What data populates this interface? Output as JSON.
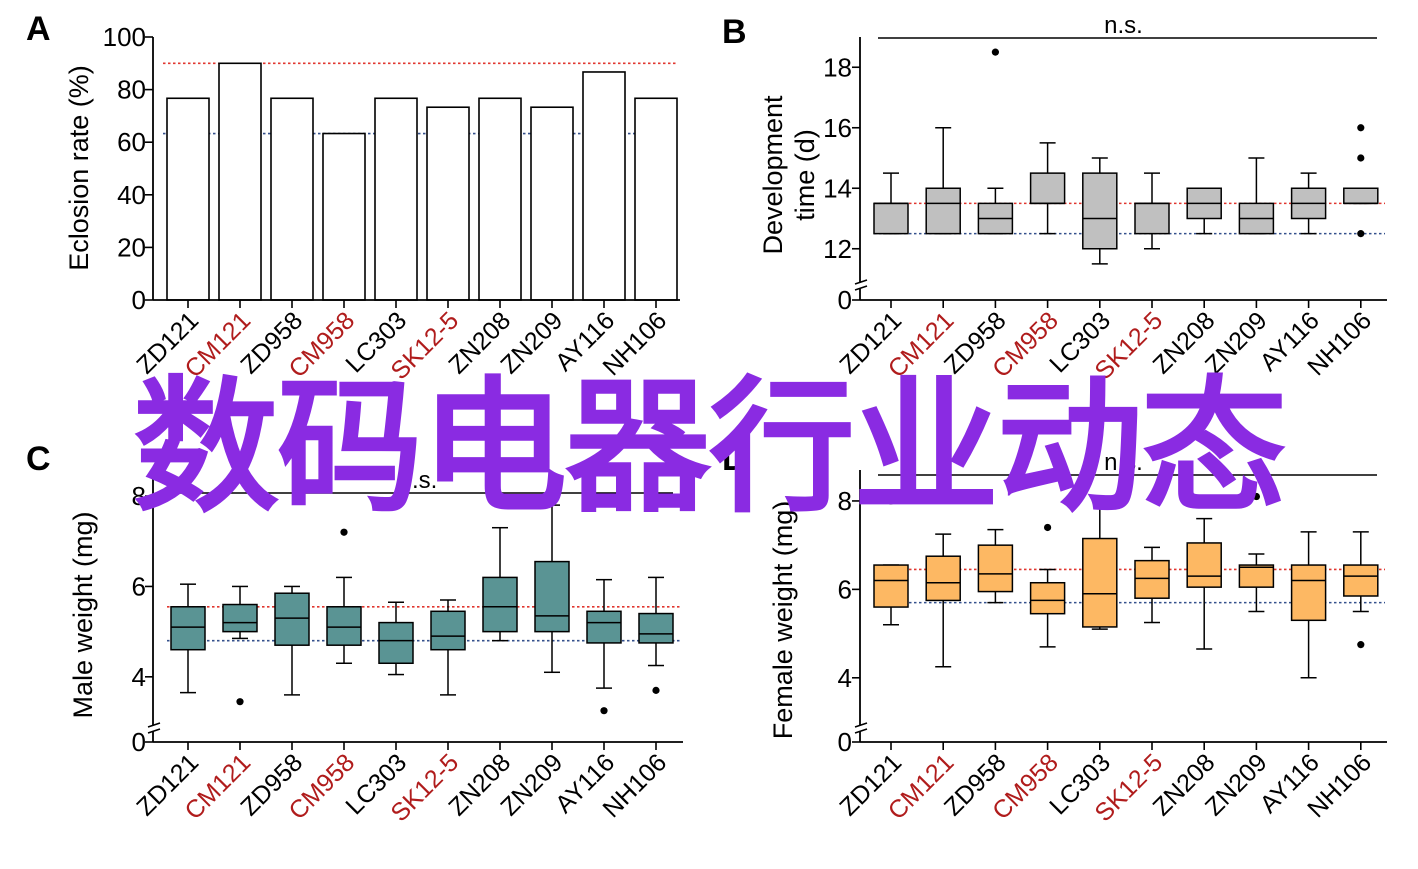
{
  "colors": {
    "red_label": "#b01c1c",
    "black_label": "#000000",
    "red_line": "#e0362f",
    "blue_line": "#34508c",
    "watermark": "#8a2be2"
  },
  "watermark": {
    "text": "数码电器行业动态"
  },
  "strains": [
    {
      "label": "ZD121",
      "color": "black"
    },
    {
      "label": "CM121",
      "color": "red"
    },
    {
      "label": "ZD958",
      "color": "black"
    },
    {
      "label": "CM958",
      "color": "red"
    },
    {
      "label": "LC303",
      "color": "black"
    },
    {
      "label": "SK12-5",
      "color": "red"
    },
    {
      "label": "ZN208",
      "color": "black"
    },
    {
      "label": "ZN209",
      "color": "black"
    },
    {
      "label": "AY116",
      "color": "black"
    },
    {
      "label": "NH106",
      "color": "black"
    }
  ],
  "chart_data": [
    {
      "panel": "A",
      "type": "bar",
      "ylabel": "Eclosion rate (%)",
      "ylim": [
        0,
        100
      ],
      "yticks": [
        0,
        20,
        40,
        60,
        80,
        100
      ],
      "categories": [
        "ZD121",
        "CM121",
        "ZD958",
        "CM958",
        "LC303",
        "SK12-5",
        "ZN208",
        "ZN209",
        "AY116",
        "NH106"
      ],
      "values": [
        76.7,
        90,
        76.7,
        63.3,
        76.7,
        73.3,
        76.7,
        73.3,
        86.7,
        76.7
      ],
      "ref_lines": [
        {
          "color": "red",
          "value": 90
        },
        {
          "color": "blue",
          "value": 63.3
        }
      ],
      "bar_color": "#ffffff"
    },
    {
      "panel": "B",
      "type": "box",
      "ylabel_lines": [
        "Development",
        "time (d)"
      ],
      "ylim": [
        11,
        19
      ],
      "yticks": [
        12,
        14,
        16,
        18
      ],
      "zero_tick": "0",
      "axis_break": true,
      "annotation": "n.s.",
      "box_color": "#c0c0c0",
      "categories": [
        "ZD121",
        "CM121",
        "ZD958",
        "CM958",
        "LC303",
        "SK12-5",
        "ZN208",
        "ZN209",
        "AY116",
        "NH106"
      ],
      "boxes": [
        {
          "min": 12.5,
          "q1": 12.5,
          "median": 13.5,
          "q3": 13.5,
          "max": 14.5,
          "outliers": []
        },
        {
          "min": 12.5,
          "q1": 12.5,
          "median": 13.5,
          "q3": 14.0,
          "max": 16.0,
          "outliers": []
        },
        {
          "min": 12.5,
          "q1": 12.5,
          "median": 13.0,
          "q3": 13.5,
          "max": 14.0,
          "outliers": [
            18.5
          ]
        },
        {
          "min": 12.5,
          "q1": 13.5,
          "median": 13.5,
          "q3": 14.5,
          "max": 15.5,
          "outliers": []
        },
        {
          "min": 11.5,
          "q1": 12.0,
          "median": 13.0,
          "q3": 14.5,
          "max": 15.0,
          "outliers": []
        },
        {
          "min": 12.0,
          "q1": 12.5,
          "median": 13.5,
          "q3": 13.5,
          "max": 14.5,
          "outliers": []
        },
        {
          "min": 12.5,
          "q1": 13.0,
          "median": 13.5,
          "q3": 14.0,
          "max": 14.0,
          "outliers": []
        },
        {
          "min": 12.5,
          "q1": 12.5,
          "median": 13.0,
          "q3": 13.5,
          "max": 15.0,
          "outliers": []
        },
        {
          "min": 12.5,
          "q1": 13.0,
          "median": 13.5,
          "q3": 14.0,
          "max": 14.5,
          "outliers": []
        },
        {
          "min": 13.5,
          "q1": 13.5,
          "median": 13.5,
          "q3": 14.0,
          "max": 14.0,
          "outliers": [
            16.0,
            15.0,
            12.5
          ]
        }
      ],
      "ref_lines": [
        {
          "color": "red",
          "value": 13.5
        },
        {
          "color": "blue",
          "value": 12.5
        }
      ]
    },
    {
      "panel": "C",
      "type": "box",
      "ylabel": "Male weight (mg)",
      "ylim": [
        3.0,
        8.4
      ],
      "yticks": [
        4,
        6,
        8
      ],
      "zero_tick": "0",
      "axis_break": true,
      "annotation": "n.s.",
      "box_color": "#5a9494",
      "categories": [
        "ZD121",
        "CM121",
        "ZD958",
        "CM958",
        "LC303",
        "SK12-5",
        "ZN208",
        "ZN209",
        "AY116",
        "NH106"
      ],
      "boxes": [
        {
          "min": 3.65,
          "q1": 4.6,
          "median": 5.1,
          "q3": 5.55,
          "max": 6.05,
          "outliers": []
        },
        {
          "min": 4.85,
          "q1": 5.0,
          "median": 5.2,
          "q3": 5.6,
          "max": 6.0,
          "outliers": [
            3.45
          ]
        },
        {
          "min": 3.6,
          "q1": 4.7,
          "median": 5.3,
          "q3": 5.85,
          "max": 6.0,
          "outliers": []
        },
        {
          "min": 4.3,
          "q1": 4.7,
          "median": 5.1,
          "q3": 5.55,
          "max": 6.2,
          "outliers": [
            7.2
          ]
        },
        {
          "min": 4.05,
          "q1": 4.3,
          "median": 4.8,
          "q3": 5.2,
          "max": 5.65,
          "outliers": []
        },
        {
          "min": 3.6,
          "q1": 4.6,
          "median": 4.9,
          "q3": 5.45,
          "max": 5.7,
          "outliers": []
        },
        {
          "min": 4.8,
          "q1": 5.0,
          "median": 5.55,
          "q3": 6.2,
          "max": 7.3,
          "outliers": []
        },
        {
          "min": 4.1,
          "q1": 5.0,
          "median": 5.35,
          "q3": 6.55,
          "max": 7.8,
          "outliers": []
        },
        {
          "min": 3.75,
          "q1": 4.75,
          "median": 5.2,
          "q3": 5.45,
          "max": 6.15,
          "outliers": [
            3.25
          ]
        },
        {
          "min": 4.25,
          "q1": 4.75,
          "median": 4.95,
          "q3": 5.4,
          "max": 6.2,
          "outliers": [
            3.7
          ]
        }
      ],
      "ref_lines": [
        {
          "color": "red",
          "value": 5.55
        },
        {
          "color": "blue",
          "value": 4.8
        }
      ]
    },
    {
      "panel": "D",
      "type": "box",
      "ylabel": "Female weight (mg)",
      "ylim": [
        3.0,
        8.7
      ],
      "yticks": [
        4,
        6,
        8
      ],
      "zero_tick": "0",
      "axis_break": true,
      "annotation": "n.s.",
      "box_color": "#fdb863",
      "categories": [
        "ZD121",
        "CM121",
        "ZD958",
        "CM958",
        "LC303",
        "SK12-5",
        "ZN208",
        "ZN209",
        "AY116",
        "NH106"
      ],
      "boxes": [
        {
          "min": 5.2,
          "q1": 5.6,
          "median": 6.2,
          "q3": 6.55,
          "max": 6.55,
          "outliers": [
            8.0
          ]
        },
        {
          "min": 4.25,
          "q1": 5.75,
          "median": 6.15,
          "q3": 6.75,
          "max": 7.25,
          "outliers": []
        },
        {
          "min": 5.7,
          "q1": 5.95,
          "median": 6.35,
          "q3": 7.0,
          "max": 7.35,
          "outliers": []
        },
        {
          "min": 4.7,
          "q1": 5.45,
          "median": 5.75,
          "q3": 6.15,
          "max": 6.45,
          "outliers": [
            7.4
          ]
        },
        {
          "min": 5.1,
          "q1": 5.15,
          "median": 5.9,
          "q3": 7.15,
          "max": 8.1,
          "outliers": []
        },
        {
          "min": 5.25,
          "q1": 5.8,
          "median": 6.25,
          "q3": 6.65,
          "max": 6.95,
          "outliers": []
        },
        {
          "min": 4.65,
          "q1": 6.05,
          "median": 6.3,
          "q3": 7.05,
          "max": 7.6,
          "outliers": []
        },
        {
          "min": 5.5,
          "q1": 6.05,
          "median": 6.5,
          "q3": 6.55,
          "max": 6.8,
          "outliers": [
            8.1
          ]
        },
        {
          "min": 4.0,
          "q1": 5.3,
          "median": 6.2,
          "q3": 6.55,
          "max": 7.3,
          "outliers": []
        },
        {
          "min": 5.5,
          "q1": 5.85,
          "median": 6.3,
          "q3": 6.55,
          "max": 7.3,
          "outliers": [
            4.75
          ]
        }
      ],
      "ref_lines": [
        {
          "color": "red",
          "value": 6.45
        },
        {
          "color": "blue",
          "value": 5.7
        }
      ]
    }
  ]
}
